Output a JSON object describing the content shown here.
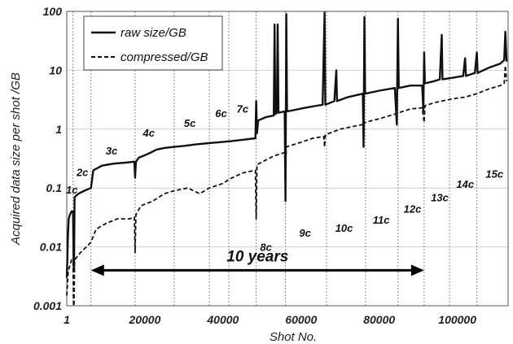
{
  "chart_data": {
    "type": "line",
    "xlabel": "Shot No.",
    "ylabel": "Acquired data size per shot /GB",
    "yscale": "log",
    "xlim": [
      1,
      113000
    ],
    "ylim": [
      0.001,
      100
    ],
    "x_ticks": [
      {
        "value": 1,
        "label": "1"
      },
      {
        "value": 20000,
        "label": "20000"
      },
      {
        "value": 40000,
        "label": "40000"
      },
      {
        "value": 60000,
        "label": "60000"
      },
      {
        "value": 80000,
        "label": "80000"
      },
      {
        "value": 100000,
        "label": "100000"
      }
    ],
    "y_ticks": [
      {
        "value": 0.001,
        "label": "0.001"
      },
      {
        "value": 0.01,
        "label": "0.01"
      },
      {
        "value": 0.1,
        "label": "0.1"
      },
      {
        "value": 1,
        "label": "1"
      },
      {
        "value": 10,
        "label": "10"
      },
      {
        "value": 100,
        "label": "100"
      }
    ],
    "grid": true,
    "cycle_boundaries": [
      1600,
      6200,
      17500,
      27500,
      36500,
      41500,
      48500,
      56000,
      66500,
      76500,
      84800,
      91500,
      98000,
      105000
    ],
    "cycle_labels": [
      {
        "label": "1c",
        "x": 1300,
        "y": 0.08
      },
      {
        "label": "2c",
        "x": 4000,
        "y": 0.16
      },
      {
        "label": "3c",
        "x": 11500,
        "y": 0.37
      },
      {
        "label": "4c",
        "x": 21000,
        "y": 0.75
      },
      {
        "label": "5c",
        "x": 31500,
        "y": 1.1
      },
      {
        "label": "6c",
        "x": 39500,
        "y": 1.6
      },
      {
        "label": "7c",
        "x": 45000,
        "y": 1.9
      },
      {
        "label": "8c",
        "x": 51000,
        "y": 0.0085
      },
      {
        "label": "9c",
        "x": 61000,
        "y": 0.015
      },
      {
        "label": "10c",
        "x": 71000,
        "y": 0.018
      },
      {
        "label": "11c",
        "x": 80500,
        "y": 0.025
      },
      {
        "label": "12c",
        "x": 88500,
        "y": 0.038
      },
      {
        "label": "13c",
        "x": 95500,
        "y": 0.06
      },
      {
        "label": "14c",
        "x": 102000,
        "y": 0.1
      },
      {
        "label": "15c",
        "x": 109500,
        "y": 0.15
      }
    ],
    "annotation": {
      "label": "10 years",
      "x_start": 6200,
      "x_end": 91500,
      "y": 0.004
    },
    "legend_position": "top-left",
    "series": [
      {
        "name": "raw size/GB",
        "style": "solid",
        "points": [
          [
            1,
            0.003
          ],
          [
            150,
            0.006
          ],
          [
            300,
            0.015
          ],
          [
            500,
            0.03
          ],
          [
            800,
            0.035
          ],
          [
            1200,
            0.04
          ],
          [
            1600,
            0.04
          ],
          [
            1750,
            0.005
          ],
          [
            1850,
            0.004
          ],
          [
            2000,
            0.07
          ],
          [
            3000,
            0.08
          ],
          [
            4500,
            0.09
          ],
          [
            6200,
            0.1
          ],
          [
            6800,
            0.2
          ],
          [
            9000,
            0.24
          ],
          [
            12000,
            0.26
          ],
          [
            15000,
            0.27
          ],
          [
            17300,
            0.28
          ],
          [
            17500,
            0.15
          ],
          [
            17700,
            0.28
          ],
          [
            18500,
            0.33
          ],
          [
            20000,
            0.36
          ],
          [
            21500,
            0.4
          ],
          [
            23000,
            0.45
          ],
          [
            25000,
            0.48
          ],
          [
            27500,
            0.5
          ],
          [
            30000,
            0.52
          ],
          [
            33000,
            0.55
          ],
          [
            36500,
            0.58
          ],
          [
            39000,
            0.6
          ],
          [
            41500,
            0.62
          ],
          [
            45000,
            0.66
          ],
          [
            48300,
            0.7
          ],
          [
            48500,
            3.0
          ],
          [
            48700,
            0.85
          ],
          [
            49000,
            1.4
          ],
          [
            51000,
            1.6
          ],
          [
            53000,
            1.7
          ],
          [
            53200,
            60
          ],
          [
            53400,
            1.8
          ],
          [
            53800,
            1.9
          ],
          [
            54000,
            60
          ],
          [
            54200,
            1.9
          ],
          [
            55800,
            2.0
          ],
          [
            56000,
            0.06
          ],
          [
            56200,
            90
          ],
          [
            56400,
            2.0
          ],
          [
            58000,
            2.1
          ],
          [
            61000,
            2.3
          ],
          [
            64000,
            2.5
          ],
          [
            65500,
            2.6
          ],
          [
            66000,
            95
          ],
          [
            66200,
            2.6
          ],
          [
            68500,
            3.0
          ],
          [
            69000,
            10
          ],
          [
            69200,
            3.0
          ],
          [
            72000,
            3.5
          ],
          [
            75800,
            4.0
          ],
          [
            76000,
            0.5
          ],
          [
            76200,
            80
          ],
          [
            76400,
            4.0
          ],
          [
            80000,
            4.5
          ],
          [
            84000,
            5.0
          ],
          [
            84500,
            1.2
          ],
          [
            84800,
            75
          ],
          [
            85000,
            5.0
          ],
          [
            88000,
            5.5
          ],
          [
            91000,
            5.5
          ],
          [
            91300,
            2.0
          ],
          [
            91500,
            20
          ],
          [
            91700,
            6.0
          ],
          [
            94000,
            6.5
          ],
          [
            95500,
            7.0
          ],
          [
            96000,
            40
          ],
          [
            96200,
            7.0
          ],
          [
            99000,
            7.5
          ],
          [
            101500,
            8.0
          ],
          [
            102000,
            16
          ],
          [
            102200,
            8.0
          ],
          [
            104500,
            9.0
          ],
          [
            105000,
            20
          ],
          [
            105200,
            9.0
          ],
          [
            108000,
            11
          ],
          [
            111000,
            13
          ],
          [
            112000,
            15
          ],
          [
            112300,
            45
          ],
          [
            112600,
            14
          ]
        ]
      },
      {
        "name": "compressed/GB",
        "style": "dashed",
        "points": [
          [
            1,
            0.0015
          ],
          [
            400,
            0.004
          ],
          [
            900,
            0.005
          ],
          [
            1200,
            0.006
          ],
          [
            1600,
            0.006
          ],
          [
            1750,
            0.001
          ],
          [
            1850,
            0.001
          ],
          [
            2000,
            0.006
          ],
          [
            3500,
            0.008
          ],
          [
            5000,
            0.01
          ],
          [
            6200,
            0.012
          ],
          [
            7500,
            0.02
          ],
          [
            10000,
            0.025
          ],
          [
            13000,
            0.03
          ],
          [
            16000,
            0.03
          ],
          [
            17300,
            0.032
          ],
          [
            17500,
            0.008
          ],
          [
            17700,
            0.035
          ],
          [
            19000,
            0.05
          ],
          [
            22000,
            0.06
          ],
          [
            25000,
            0.08
          ],
          [
            27500,
            0.09
          ],
          [
            31000,
            0.1
          ],
          [
            34000,
            0.08
          ],
          [
            36500,
            0.1
          ],
          [
            40000,
            0.12
          ],
          [
            41500,
            0.14
          ],
          [
            45000,
            0.18
          ],
          [
            48300,
            0.2
          ],
          [
            48500,
            0.03
          ],
          [
            48700,
            0.25
          ],
          [
            51000,
            0.3
          ],
          [
            53000,
            0.35
          ],
          [
            55800,
            0.4
          ],
          [
            56000,
            0.15
          ],
          [
            56200,
            0.5
          ],
          [
            60000,
            0.6
          ],
          [
            63000,
            0.7
          ],
          [
            65800,
            0.75
          ],
          [
            66000,
            0.5
          ],
          [
            66200,
            0.8
          ],
          [
            70000,
            1.0
          ],
          [
            73000,
            1.1
          ],
          [
            75800,
            1.2
          ],
          [
            76000,
            0.6
          ],
          [
            76200,
            1.3
          ],
          [
            80000,
            1.5
          ],
          [
            84000,
            1.8
          ],
          [
            86000,
            2.0
          ],
          [
            88000,
            2.2
          ],
          [
            91000,
            2.3
          ],
          [
            91500,
            1.3
          ],
          [
            91700,
            2.5
          ],
          [
            94000,
            2.8
          ],
          [
            96000,
            3.0
          ],
          [
            99000,
            3.3
          ],
          [
            102000,
            3.5
          ],
          [
            105000,
            4.0
          ],
          [
            108000,
            4.8
          ],
          [
            111000,
            5.5
          ],
          [
            112000,
            6.0
          ],
          [
            112300,
            12
          ],
          [
            112600,
            6.5
          ]
        ]
      }
    ]
  }
}
